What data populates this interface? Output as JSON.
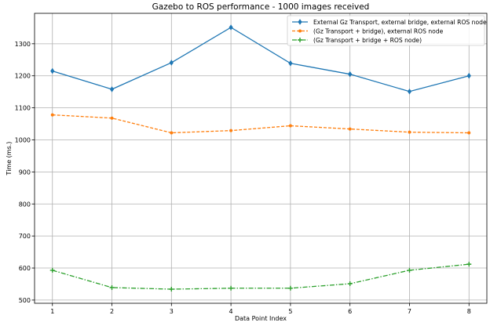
{
  "chart_data": {
    "type": "line",
    "title": "Gazebo to ROS performance - 1000 images received",
    "xlabel": "Data Point Index",
    "ylabel": "Time (ms.)",
    "x": [
      1,
      2,
      3,
      4,
      5,
      6,
      7,
      8
    ],
    "xlim": [
      0.7,
      8.3
    ],
    "ylim": [
      490,
      1395
    ],
    "xticks": [
      1,
      2,
      3,
      4,
      5,
      6,
      7,
      8
    ],
    "yticks": [
      500,
      600,
      700,
      800,
      900,
      1000,
      1100,
      1200,
      1300
    ],
    "grid": true,
    "legend_position": "top-right",
    "series": [
      {
        "name": "External Gz Transport, external bridge, external ROS node",
        "color": "#1f77b4",
        "style": "solid",
        "marker": "diamond",
        "values": [
          1215,
          1158,
          1241,
          1351,
          1239,
          1205,
          1151,
          1200
        ]
      },
      {
        "name": "(Gz Transport + bridge), external ROS node",
        "color": "#ff7f0e",
        "style": "dashed",
        "marker": "circle",
        "values": [
          1078,
          1068,
          1022,
          1029,
          1044,
          1034,
          1024,
          1022
        ]
      },
      {
        "name": "(Gz Transport + bridge + ROS node)",
        "color": "#2ca02c",
        "style": "dashdot",
        "marker": "plus",
        "values": [
          593,
          539,
          534,
          537,
          537,
          551,
          593,
          612
        ]
      }
    ]
  }
}
